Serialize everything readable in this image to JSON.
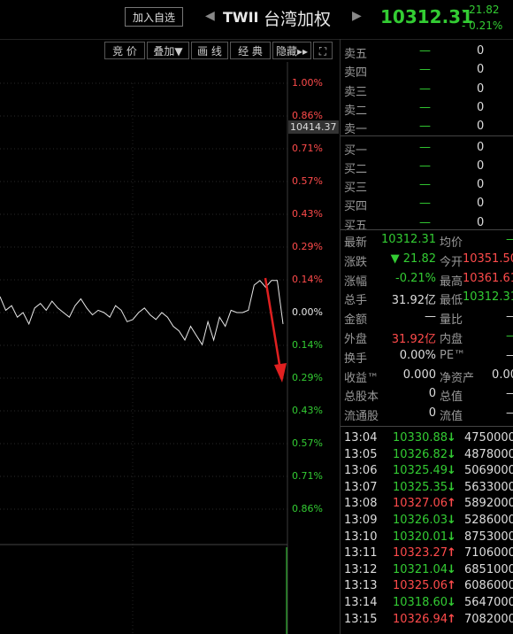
{
  "header": {
    "add_watch": "加入自选",
    "code": "TWII",
    "name": "台湾加权",
    "price": "10312.31",
    "change": "- 21.82",
    "change_pct": "- 0.21%",
    "prev_arrow": "◀",
    "next_arrow": "▶"
  },
  "toolbar": {
    "bid": "竞 价",
    "overlay": "叠加▼",
    "draw": "画 线",
    "classic": "经 典",
    "hide": "隐藏▸▸",
    "expand": "⛶"
  },
  "chart": {
    "crosshair_value": "10414.37",
    "right_axis": [
      {
        "label": "1.00%",
        "color": "#ff4b4b"
      },
      {
        "label": "0.86%",
        "color": "#ff4b4b"
      },
      {
        "label": "0.71%",
        "color": "#ff4b4b"
      },
      {
        "label": "0.57%",
        "color": "#ff4b4b"
      },
      {
        "label": "0.43%",
        "color": "#ff4b4b"
      },
      {
        "label": "0.29%",
        "color": "#ff4b4b"
      },
      {
        "label": "0.14%",
        "color": "#ff4b4b"
      },
      {
        "label": "0.00%",
        "color": "#e8e8e8"
      },
      {
        "label": "0.14%",
        "color": "#33cc33"
      },
      {
        "label": "0.29%",
        "color": "#33cc33"
      },
      {
        "label": "0.43%",
        "color": "#33cc33"
      },
      {
        "label": "0.57%",
        "color": "#33cc33"
      },
      {
        "label": "0.71%",
        "color": "#33cc33"
      },
      {
        "label": "0.86%",
        "color": "#33cc33"
      }
    ],
    "price_line": [
      0.07,
      0.01,
      0.03,
      -0.02,
      0.0,
      -0.05,
      0.02,
      0.04,
      0.01,
      0.05,
      0.02,
      0.0,
      -0.02,
      0.03,
      0.06,
      0.02,
      -0.01,
      0.01,
      0.0,
      -0.02,
      0.03,
      0.01,
      -0.04,
      -0.03,
      0.0,
      0.02,
      -0.01,
      -0.03,
      0.0,
      -0.02,
      -0.06,
      -0.08,
      -0.12,
      -0.06,
      -0.1,
      -0.14,
      -0.04,
      -0.12,
      -0.02,
      -0.06,
      0.01,
      0.0,
      0.0,
      0.01,
      0.12,
      0.14,
      0.11,
      0.14,
      0.14,
      -0.05
    ]
  },
  "orderbook": [
    {
      "label": "卖五",
      "price": "—",
      "vol": "0"
    },
    {
      "label": "卖四",
      "price": "—",
      "vol": "0"
    },
    {
      "label": "卖三",
      "price": "—",
      "vol": "0"
    },
    {
      "label": "卖二",
      "price": "—",
      "vol": "0"
    },
    {
      "label": "卖一",
      "price": "—",
      "vol": "0"
    },
    {
      "label": "买一",
      "price": "—",
      "vol": "0"
    },
    {
      "label": "买二",
      "price": "—",
      "vol": "0"
    },
    {
      "label": "买三",
      "price": "—",
      "vol": "0"
    },
    {
      "label": "买四",
      "price": "—",
      "vol": "0"
    },
    {
      "label": "买五",
      "price": "—",
      "vol": "0"
    }
  ],
  "quote": [
    {
      "l1": "最新",
      "v1": "10312.31",
      "c1": "#33cc33",
      "l2": "均价",
      "v2": "—",
      "c2": "#33cc33"
    },
    {
      "l1": "涨跌",
      "v1": "▼ 21.82",
      "c1": "#33cc33",
      "l2": "今开",
      "v2": "10351.50",
      "c2": "#ff4b4b"
    },
    {
      "l1": "涨幅",
      "v1": "-0.21%",
      "c1": "#33cc33",
      "l2": "最高",
      "v2": "10361.61",
      "c2": "#ff4b4b"
    },
    {
      "l1": "总手",
      "v1": "31.92亿",
      "c1": "#dddddd",
      "l2": "最低",
      "v2": "10312.31",
      "c2": "#33cc33"
    },
    {
      "l1": "金额",
      "v1": "—",
      "c1": "#dddddd",
      "l2": "量比",
      "v2": "—",
      "c2": "#dddddd"
    },
    {
      "l1": "外盘",
      "v1": "31.92亿",
      "c1": "#ff4b4b",
      "l2": "内盘",
      "v2": "—",
      "c2": "#33cc33"
    },
    {
      "l1": "换手",
      "v1": "0.00%",
      "c1": "#dddddd",
      "l2": "PE™",
      "v2": "—",
      "c2": "#dddddd"
    },
    {
      "l1": "收益™",
      "v1": "0.000",
      "c1": "#dddddd",
      "l2": "净资产",
      "v2": "0.00",
      "c2": "#dddddd"
    },
    {
      "l1": "总股本",
      "v1": "0",
      "c1": "#dddddd",
      "l2": "总值",
      "v2": "—",
      "c2": "#dddddd"
    },
    {
      "l1": "流通股",
      "v1": "0",
      "c1": "#dddddd",
      "l2": "流值",
      "v2": "—",
      "c2": "#dddddd"
    }
  ],
  "ticks": [
    {
      "time": "13:04",
      "price": "10330.88",
      "dir": "↓",
      "vol": "4750000"
    },
    {
      "time": "13:05",
      "price": "10326.82",
      "dir": "↓",
      "vol": "4878000"
    },
    {
      "time": "13:06",
      "price": "10325.49",
      "dir": "↓",
      "vol": "5069000"
    },
    {
      "time": "13:07",
      "price": "10325.35",
      "dir": "↓",
      "vol": "5633000"
    },
    {
      "time": "13:08",
      "price": "10327.06",
      "dir": "↑",
      "vol": "5892000"
    },
    {
      "time": "13:09",
      "price": "10326.03",
      "dir": "↓",
      "vol": "5286000"
    },
    {
      "time": "13:10",
      "price": "10320.01",
      "dir": "↓",
      "vol": "8753000"
    },
    {
      "time": "13:11",
      "price": "10323.27",
      "dir": "↑",
      "vol": "7106000"
    },
    {
      "time": "13:12",
      "price": "10321.04",
      "dir": "↓",
      "vol": "6851000"
    },
    {
      "time": "13:13",
      "price": "10325.06",
      "dir": "↑",
      "vol": "6086000"
    },
    {
      "time": "13:14",
      "price": "10318.60",
      "dir": "↓",
      "vol": "5647000"
    },
    {
      "time": "13:15",
      "price": "10326.94",
      "dir": "↑",
      "vol": "7082000"
    }
  ]
}
